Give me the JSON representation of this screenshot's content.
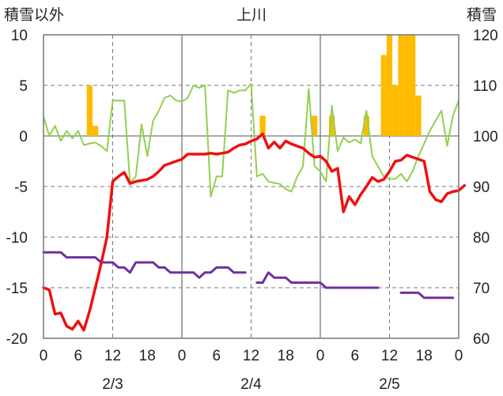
{
  "chart_data": {
    "type": "line",
    "title": "上川",
    "left_axis_label": "積雪以外",
    "right_axis_label": "積雪",
    "x_tick_labels": [
      "0",
      "6",
      "12",
      "18",
      "0",
      "6",
      "12",
      "18",
      "0",
      "6",
      "12",
      "18",
      "0"
    ],
    "date_labels": [
      "2/3",
      "2/4",
      "2/5"
    ],
    "y_left": {
      "min": -20,
      "max": 10,
      "ticks": [
        10,
        5,
        0,
        -5,
        -10,
        -15,
        -20
      ]
    },
    "y_right": {
      "min": 60,
      "max": 120,
      "ticks": [
        120,
        110,
        100,
        90,
        80,
        70,
        60
      ]
    },
    "grid": true,
    "colors": {
      "temperature": "#ee1111",
      "wind": "#7030a0",
      "precip": "#ffbb00",
      "snow_depth": "#92d050",
      "frame": "#777777",
      "grid": "#777777"
    },
    "series": [
      {
        "key": "temperature",
        "axis": "left",
        "points": [
          [
            0,
            -15
          ],
          [
            1,
            -15.2
          ],
          [
            2,
            -17.6
          ],
          [
            3,
            -17.5
          ],
          [
            4,
            -18.8
          ],
          [
            5,
            -19.1
          ],
          [
            6,
            -18.3
          ],
          [
            7,
            -19.2
          ],
          [
            8,
            -17.3
          ],
          [
            9,
            -15
          ],
          [
            10,
            -12.6
          ],
          [
            11,
            -10
          ],
          [
            12,
            -4.5
          ],
          [
            13,
            -4
          ],
          [
            14,
            -3.6
          ],
          [
            15,
            -4.7
          ],
          [
            16,
            -4.5
          ],
          [
            17,
            -4.4
          ],
          [
            18,
            -4.3
          ],
          [
            19,
            -4
          ],
          [
            20,
            -3.5
          ],
          [
            21,
            -2.9
          ],
          [
            22,
            -2.7
          ],
          [
            23,
            -2.5
          ],
          [
            24,
            -2.3
          ],
          [
            25,
            -1.8
          ],
          [
            26,
            -1.8
          ],
          [
            27,
            -1.8
          ],
          [
            28,
            -1.8
          ],
          [
            29,
            -1.7
          ],
          [
            30,
            -1.8
          ],
          [
            31,
            -1.7
          ],
          [
            32,
            -1.6
          ],
          [
            33,
            -1.2
          ],
          [
            34,
            -0.9
          ],
          [
            35,
            -0.8
          ],
          [
            36,
            -0.5
          ],
          [
            37,
            -0.3
          ],
          [
            38,
            0.2
          ],
          [
            39,
            -1.2
          ],
          [
            40,
            -0.6
          ],
          [
            41,
            -1.2
          ],
          [
            42,
            -0.5
          ],
          [
            43,
            -0.8
          ],
          [
            44,
            -1
          ],
          [
            45,
            -1.2
          ],
          [
            46,
            -1.7
          ],
          [
            47,
            -2.1
          ],
          [
            48,
            -2
          ],
          [
            49,
            -2.5
          ],
          [
            50,
            -3.5
          ],
          [
            51,
            -3.2
          ],
          [
            52,
            -7.5
          ],
          [
            53,
            -6
          ],
          [
            54,
            -6.8
          ],
          [
            55,
            -5.8
          ],
          [
            56,
            -5
          ],
          [
            57,
            -4.1
          ],
          [
            58,
            -4.5
          ],
          [
            59,
            -4.3
          ],
          [
            60,
            -3.5
          ],
          [
            61,
            -2.5
          ],
          [
            62,
            -2.4
          ],
          [
            63,
            -1.9
          ],
          [
            64,
            -2.1
          ],
          [
            65,
            -2.3
          ],
          [
            66,
            -2.5
          ],
          [
            67,
            -5.5
          ],
          [
            68,
            -6.3
          ],
          [
            69,
            -6.5
          ],
          [
            70,
            -5.7
          ],
          [
            71,
            -5.5
          ],
          [
            72,
            -5.4
          ],
          [
            73,
            -4.9
          ]
        ]
      },
      {
        "key": "wind",
        "axis": "left",
        "segments": [
          [
            [
              0,
              -11.5
            ],
            [
              2,
              -11.5
            ],
            [
              3,
              -11.5
            ],
            [
              4,
              -12
            ],
            [
              8,
              -12
            ],
            [
              9,
              -12
            ],
            [
              10,
              -12.5
            ],
            [
              12,
              -12.5
            ],
            [
              13,
              -13
            ],
            [
              14,
              -13
            ],
            [
              15,
              -13.5
            ],
            [
              16,
              -12.5
            ],
            [
              19,
              -12.5
            ],
            [
              20,
              -13
            ],
            [
              21,
              -13
            ],
            [
              22,
              -13.5
            ],
            [
              26,
              -13.5
            ],
            [
              27,
              -14
            ],
            [
              28,
              -13.5
            ],
            [
              29,
              -13.5
            ],
            [
              30,
              -13
            ],
            [
              32,
              -13
            ],
            [
              33,
              -13.5
            ],
            [
              35,
              -13.5
            ]
          ],
          [
            [
              37,
              -14.5
            ],
            [
              38,
              -14.5
            ],
            [
              39,
              -13.5
            ],
            [
              40,
              -14
            ],
            [
              42,
              -14
            ],
            [
              43,
              -14.5
            ],
            [
              48,
              -14.5
            ],
            [
              49,
              -15
            ],
            [
              58,
              -15
            ]
          ],
          [
            [
              62,
              -15.5
            ],
            [
              65,
              -15.5
            ],
            [
              66,
              -16
            ],
            [
              71,
              -16
            ]
          ]
        ]
      },
      {
        "key": "snow_depth",
        "axis": "right",
        "points": [
          [
            0,
            103.8
          ],
          [
            1,
            100
          ],
          [
            2,
            102
          ],
          [
            3,
            99
          ],
          [
            4,
            101
          ],
          [
            5,
            99.5
          ],
          [
            6,
            101
          ],
          [
            7,
            98.2
          ],
          [
            8,
            98.5
          ],
          [
            9,
            98.7
          ],
          [
            10,
            98
          ],
          [
            11,
            97
          ],
          [
            12,
            107
          ],
          [
            13,
            107
          ],
          [
            14,
            107
          ],
          [
            15,
            90.7
          ],
          [
            16,
            92
          ],
          [
            17,
            102.3
          ],
          [
            18,
            96
          ],
          [
            19,
            103
          ],
          [
            20,
            105
          ],
          [
            21,
            107.5
          ],
          [
            22,
            108
          ],
          [
            23,
            107
          ],
          [
            24,
            106.8
          ],
          [
            25,
            107.5
          ],
          [
            26,
            110
          ],
          [
            27,
            109.5
          ],
          [
            28,
            110
          ],
          [
            29,
            88
          ],
          [
            30,
            92
          ],
          [
            31,
            92
          ],
          [
            32,
            109
          ],
          [
            33,
            108.5
          ],
          [
            34,
            109
          ],
          [
            35,
            109
          ],
          [
            36,
            110.3
          ],
          [
            37,
            92
          ],
          [
            38,
            92.5
          ],
          [
            39,
            91
          ],
          [
            40,
            90.7
          ],
          [
            41,
            90.5
          ],
          [
            42,
            89.5
          ],
          [
            43,
            89
          ],
          [
            44,
            92
          ],
          [
            45,
            94
          ],
          [
            46,
            109.3
          ],
          [
            47,
            94
          ],
          [
            48,
            93
          ],
          [
            49,
            91
          ],
          [
            50,
            106
          ],
          [
            51,
            97
          ],
          [
            52,
            99.7
          ],
          [
            53,
            98.7
          ],
          [
            54,
            99.3
          ],
          [
            55,
            98.5
          ],
          [
            56,
            105
          ],
          [
            57,
            96
          ],
          [
            58,
            94
          ],
          [
            59,
            92
          ],
          [
            60,
            91.5
          ],
          [
            61,
            91.5
          ],
          [
            62,
            92.5
          ],
          [
            63,
            91
          ],
          [
            64,
            93
          ],
          [
            65,
            96
          ],
          [
            66,
            98.5
          ],
          [
            67,
            101
          ],
          [
            68,
            103
          ],
          [
            69,
            105
          ],
          [
            70,
            98
          ],
          [
            71,
            104
          ],
          [
            72,
            107
          ]
        ]
      }
    ],
    "bars": {
      "key": "precip",
      "axis": "left",
      "values": [
        [
          8,
          5
        ],
        [
          9,
          1
        ],
        [
          38,
          2
        ],
        [
          47,
          2
        ],
        [
          50,
          2
        ],
        [
          56,
          2
        ],
        [
          59,
          8
        ],
        [
          60,
          10
        ],
        [
          61,
          5
        ],
        [
          62,
          10
        ],
        [
          63,
          10
        ],
        [
          64,
          10
        ],
        [
          65,
          4
        ]
      ]
    }
  }
}
